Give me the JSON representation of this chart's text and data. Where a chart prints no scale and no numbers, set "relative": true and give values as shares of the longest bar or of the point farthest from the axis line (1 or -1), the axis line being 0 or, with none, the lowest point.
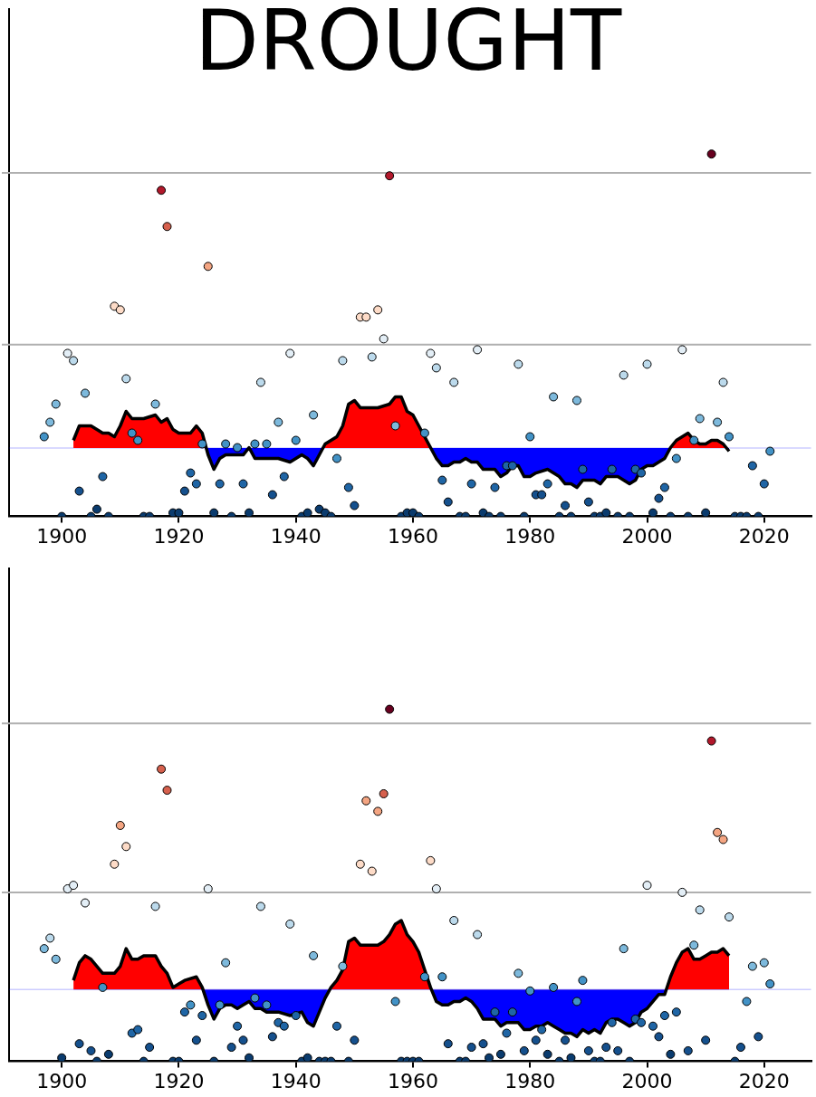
{
  "chart_data": [
    {
      "type": "scatter",
      "title": "DROUGHT",
      "relative": true,
      "tick_labels": "x",
      "legend": false,
      "grid": false,
      "xlim": [
        1891,
        2028
      ],
      "xticks": [
        1900,
        1920,
        1940,
        1960,
        1980,
        2000,
        2020
      ],
      "x": [
        1897,
        1898,
        1899,
        1900,
        1901,
        1902,
        1903,
        1904,
        1905,
        1906,
        1907,
        1908,
        1909,
        1910,
        1911,
        1912,
        1913,
        1914,
        1915,
        1916,
        1917,
        1918,
        1919,
        1920,
        1921,
        1922,
        1923,
        1924,
        1925,
        1926,
        1927,
        1928,
        1929,
        1930,
        1931,
        1932,
        1933,
        1934,
        1935,
        1936,
        1937,
        1938,
        1939,
        1940,
        1941,
        1942,
        1943,
        1944,
        1945,
        1946,
        1947,
        1948,
        1949,
        1950,
        1951,
        1952,
        1953,
        1954,
        1955,
        1956,
        1957,
        1958,
        1959,
        1960,
        1961,
        1962,
        1963,
        1964,
        1965,
        1966,
        1967,
        1968,
        1969,
        1970,
        1971,
        1972,
        1973,
        1974,
        1975,
        1976,
        1977,
        1978,
        1979,
        1980,
        1981,
        1982,
        1983,
        1984,
        1985,
        1986,
        1987,
        1988,
        1989,
        1990,
        1991,
        1992,
        1993,
        1994,
        1995,
        1996,
        1997,
        1998,
        1999,
        2000,
        2001,
        2002,
        2003,
        2004,
        2005,
        2006,
        2007,
        2008,
        2009,
        2010,
        2011,
        2012,
        2013,
        2014,
        2015,
        2016,
        2017,
        2018,
        2019,
        2020,
        2021
      ],
      "ref_lines": [
        {
          "axis": "y",
          "value": 0.189,
          "color": "#0000ff"
        },
        {
          "axis": "y",
          "value": 0.474,
          "color": "#b0b0b0"
        },
        {
          "axis": "y",
          "value": 0.948,
          "color": "#b0b0b0"
        }
      ],
      "series": [
        {
          "type": "area",
          "color": "#ff0000",
          "x": [
            1902,
            1903,
            1905,
            1906,
            1907,
            1908,
            1909,
            1910,
            1911,
            1912,
            1914,
            1916,
            1917,
            1918,
            1919,
            1920,
            1922,
            1923,
            1924,
            1925,
            1926,
            1927,
            1928,
            1929,
            1930,
            1931,
            1932,
            1933,
            1935,
            1937,
            1939,
            1941,
            1942,
            1943,
            1944,
            1945,
            1947,
            1948,
            1949,
            1950,
            1951,
            1954,
            1956,
            1957,
            1958,
            1959,
            1960,
            1961,
            1962,
            1963,
            1964,
            1965,
            1966,
            1967,
            1968,
            1969,
            1970,
            1971,
            1972,
            1973,
            1974,
            1975,
            1976,
            1977,
            1978,
            1979,
            1980,
            1981,
            1983,
            1984,
            1985,
            1986,
            1987,
            1988,
            1989,
            1991,
            1992,
            1993,
            1995,
            1996,
            1997,
            1998,
            1999,
            2000,
            2001,
            2002,
            2003,
            2004,
            2005,
            2006,
            2007,
            2008,
            2009,
            2010,
            2011,
            2012,
            2013,
            2014
          ],
          "values": [
            0.21,
            0.25,
            0.25,
            0.24,
            0.23,
            0.23,
            0.22,
            0.25,
            0.29,
            0.27,
            0.27,
            0.28,
            0.26,
            0.27,
            0.24,
            0.23,
            0.23,
            0.25,
            0.23,
            0.17,
            0.13,
            0.16,
            0.17,
            0.17,
            0.17,
            0.17,
            0.19,
            0.16,
            0.16,
            0.16,
            0.15,
            0.17,
            0.16,
            0.14,
            0.17,
            0.2,
            0.22,
            0.25,
            0.31,
            0.32,
            0.3,
            0.3,
            0.31,
            0.33,
            0.33,
            0.29,
            0.28,
            0.25,
            0.22,
            0.19,
            0.16,
            0.14,
            0.14,
            0.15,
            0.15,
            0.16,
            0.15,
            0.15,
            0.13,
            0.13,
            0.13,
            0.11,
            0.12,
            0.14,
            0.14,
            0.11,
            0.11,
            0.12,
            0.13,
            0.12,
            0.11,
            0.09,
            0.09,
            0.08,
            0.1,
            0.1,
            0.09,
            0.11,
            0.11,
            0.1,
            0.09,
            0.1,
            0.13,
            0.14,
            0.14,
            0.15,
            0.16,
            0.19,
            0.21,
            0.22,
            0.23,
            0.21,
            0.2,
            0.2,
            0.21,
            0.21,
            0.2,
            0.18
          ]
        },
        {
          "marker": "circle",
          "values": [
            0.22,
            0.26,
            0.31,
            0,
            0.45,
            0.43,
            0.07,
            0.34,
            0,
            0.02,
            0.11,
            0,
            0.58,
            0.57,
            0.38,
            0.23,
            0.21,
            0,
            0,
            0.31,
            0.9,
            0.8,
            0.01,
            0.01,
            0.07,
            0.12,
            0.09,
            0.2,
            0.69,
            0.01,
            0.09,
            0.2,
            0,
            0.19,
            0.09,
            0.01,
            0.2,
            0.37,
            0.2,
            0.06,
            0.26,
            0.11,
            0.45,
            0.21,
            0,
            0.01,
            0.28,
            0.02,
            0.01,
            0,
            0.16,
            0.43,
            0.08,
            0.03,
            0.55,
            0.55,
            0.44,
            0.57,
            0.49,
            0.94,
            0.25,
            0,
            0.01,
            0.01,
            0,
            0.23,
            0.45,
            0.41,
            0.1,
            0.04,
            0.37,
            0,
            0,
            0.09,
            0.46,
            0.01,
            0,
            0.08,
            0,
            0.14,
            0.14,
            0.42,
            0,
            0.22,
            0.06,
            0.06,
            0.09,
            0.33,
            0,
            0.03,
            0,
            0.32,
            0.13,
            0.04,
            0,
            0,
            0.01,
            0.13,
            0,
            0.39,
            0,
            0.13,
            0.12,
            0.42,
            0.01,
            0.05,
            0.08,
            0,
            0.16,
            0.46,
            0,
            0.21,
            0.27,
            0.01,
            1,
            0.26,
            0.37,
            0.22,
            0,
            0,
            0,
            0.14,
            0,
            0.09,
            0.18
          ],
          "colors": [
            "#4292c6",
            "#7db9dc",
            "#7db9dc",
            "#0a3b6e",
            "#e3eef6",
            "#bcdaec",
            "#15508d",
            "#7db9dc",
            "#0a3b6e",
            "#0a3b6e",
            "#1f65a5",
            "#0a3b6e",
            "#fddbc7",
            "#fddbc7",
            "#bcdaec",
            "#4292c6",
            "#4292c6",
            "#0a3b6e",
            "#0a3b6e",
            "#7db9dc",
            "#b2182b",
            "#d6604d",
            "#0a3b6e",
            "#0a3b6e",
            "#15508d",
            "#1f65a5",
            "#1f65a5",
            "#4292c6",
            "#f4a582",
            "#0a3b6e",
            "#1f65a5",
            "#4292c6",
            "#0a3b6e",
            "#4292c6",
            "#1f65a5",
            "#0a3b6e",
            "#4292c6",
            "#bcdaec",
            "#4292c6",
            "#15508d",
            "#7db9dc",
            "#1f65a5",
            "#e3eef6",
            "#4292c6",
            "#0a3b6e",
            "#0a3b6e",
            "#7db9dc",
            "#0a3b6e",
            "#0a3b6e",
            "#0a3b6e",
            "#4292c6",
            "#bcdaec",
            "#1f65a5",
            "#15508d",
            "#fddbc7",
            "#fddbc7",
            "#bcdaec",
            "#fddbc7",
            "#e3eef6",
            "#b2182b",
            "#7db9dc",
            "#0a3b6e",
            "#0a3b6e",
            "#0a3b6e",
            "#0a3b6e",
            "#4292c6",
            "#e3eef6",
            "#bcdaec",
            "#1f65a5",
            "#15508d",
            "#bcdaec",
            "#0a3b6e",
            "#0a3b6e",
            "#1f65a5",
            "#e3eef6",
            "#0a3b6e",
            "#0a3b6e",
            "#1f65a5",
            "#0a3b6e",
            "#1f65a5",
            "#1f65a5",
            "#bcdaec",
            "#0a3b6e",
            "#4292c6",
            "#15508d",
            "#15508d",
            "#1f65a5",
            "#7db9dc",
            "#0a3b6e",
            "#15508d",
            "#0a3b6e",
            "#7db9dc",
            "#1f65a5",
            "#15508d",
            "#0a3b6e",
            "#0a3b6e",
            "#0a3b6e",
            "#1f65a5",
            "#0a3b6e",
            "#bcdaec",
            "#0a3b6e",
            "#1f65a5",
            "#1f65a5",
            "#bcdaec",
            "#0a3b6e",
            "#15508d",
            "#1f65a5",
            "#0a3b6e",
            "#4292c6",
            "#e3eef6",
            "#0a3b6e",
            "#4292c6",
            "#7db9dc",
            "#0a3b6e",
            "#67001f",
            "#7db9dc",
            "#bcdaec",
            "#4292c6",
            "#0a3b6e",
            "#0a3b6e",
            "#0a3b6e",
            "#1f65a5",
            "#0a3b6e",
            "#1f65a5",
            "#4292c6"
          ]
        }
      ]
    },
    {
      "type": "scatter",
      "relative": true,
      "tick_labels": "x",
      "legend": false,
      "grid": false,
      "xlim": [
        1891,
        2028
      ],
      "xticks": [
        1900,
        1920,
        1940,
        1960,
        1980,
        2000,
        2020
      ],
      "x": [
        1897,
        1898,
        1899,
        1900,
        1901,
        1902,
        1903,
        1904,
        1905,
        1906,
        1907,
        1908,
        1909,
        1910,
        1911,
        1912,
        1913,
        1914,
        1915,
        1916,
        1917,
        1918,
        1919,
        1920,
        1921,
        1922,
        1923,
        1924,
        1925,
        1926,
        1927,
        1928,
        1929,
        1930,
        1931,
        1932,
        1933,
        1934,
        1935,
        1936,
        1937,
        1938,
        1939,
        1940,
        1941,
        1942,
        1943,
        1944,
        1945,
        1946,
        1947,
        1948,
        1949,
        1950,
        1951,
        1952,
        1953,
        1954,
        1955,
        1956,
        1957,
        1958,
        1959,
        1960,
        1961,
        1962,
        1963,
        1964,
        1965,
        1966,
        1967,
        1968,
        1969,
        1970,
        1971,
        1972,
        1973,
        1974,
        1975,
        1976,
        1977,
        1978,
        1979,
        1980,
        1981,
        1982,
        1983,
        1984,
        1985,
        1986,
        1987,
        1988,
        1989,
        1990,
        1991,
        1992,
        1993,
        1994,
        1995,
        1996,
        1997,
        1998,
        1999,
        2000,
        2001,
        2002,
        2003,
        2004,
        2005,
        2006,
        2007,
        2008,
        2009,
        2010,
        2011,
        2012,
        2013,
        2014,
        2015,
        2016,
        2017,
        2018,
        2019,
        2020,
        2021
      ],
      "ref_lines": [
        {
          "axis": "y",
          "value": 0.204,
          "color": "#0000ff"
        },
        {
          "axis": "y",
          "value": 0.48,
          "color": "#b0b0b0"
        },
        {
          "axis": "y",
          "value": 0.96,
          "color": "#b0b0b0"
        }
      ],
      "series": [
        {
          "type": "area",
          "color": "#ff0000",
          "x": [
            1902,
            1903,
            1904,
            1905,
            1906,
            1907,
            1909,
            1910,
            1911,
            1912,
            1913,
            1914,
            1916,
            1917,
            1918,
            1919,
            1920,
            1921,
            1923,
            1924,
            1925,
            1926,
            1927,
            1928,
            1929,
            1930,
            1931,
            1932,
            1933,
            1934,
            1935,
            1937,
            1939,
            1941,
            1942,
            1943,
            1944,
            1945,
            1946,
            1947,
            1948,
            1949,
            1950,
            1951,
            1954,
            1955,
            1956,
            1957,
            1958,
            1959,
            1960,
            1961,
            1962,
            1963,
            1964,
            1965,
            1966,
            1967,
            1968,
            1969,
            1970,
            1971,
            1972,
            1974,
            1975,
            1976,
            1977,
            1978,
            1979,
            1980,
            1981,
            1982,
            1983,
            1984,
            1985,
            1986,
            1987,
            1988,
            1989,
            1990,
            1991,
            1992,
            1993,
            1994,
            1995,
            1996,
            1997,
            1998,
            1999,
            2000,
            2001,
            2002,
            2003,
            2004,
            2005,
            2006,
            2007,
            2008,
            2009,
            2010,
            2011,
            2012,
            2013,
            2014
          ],
          "values": [
            0.23,
            0.28,
            0.3,
            0.29,
            0.27,
            0.25,
            0.25,
            0.27,
            0.32,
            0.29,
            0.29,
            0.3,
            0.3,
            0.27,
            0.25,
            0.21,
            0.22,
            0.23,
            0.24,
            0.21,
            0.16,
            0.12,
            0.15,
            0.16,
            0.16,
            0.15,
            0.16,
            0.17,
            0.15,
            0.15,
            0.14,
            0.14,
            0.13,
            0.14,
            0.11,
            0.1,
            0.14,
            0.18,
            0.21,
            0.23,
            0.26,
            0.34,
            0.35,
            0.33,
            0.33,
            0.34,
            0.36,
            0.39,
            0.4,
            0.36,
            0.34,
            0.31,
            0.26,
            0.21,
            0.17,
            0.16,
            0.16,
            0.17,
            0.17,
            0.18,
            0.17,
            0.15,
            0.12,
            0.12,
            0.1,
            0.11,
            0.11,
            0.11,
            0.09,
            0.09,
            0.1,
            0.1,
            0.11,
            0.1,
            0.09,
            0.08,
            0.08,
            0.07,
            0.09,
            0.08,
            0.09,
            0.08,
            0.11,
            0.12,
            0.12,
            0.11,
            0.1,
            0.11,
            0.14,
            0.15,
            0.17,
            0.19,
            0.19,
            0.24,
            0.28,
            0.31,
            0.32,
            0.29,
            0.29,
            0.3,
            0.31,
            0.31,
            0.32,
            0.3
          ]
        },
        {
          "marker": "circle",
          "values": [
            0.32,
            0.35,
            0.29,
            0.01,
            0.49,
            0.5,
            0.05,
            0.45,
            0.03,
            0,
            0.21,
            0.02,
            0.56,
            0.67,
            0.61,
            0.08,
            0.09,
            0,
            0.04,
            0.44,
            0.83,
            0.77,
            0,
            0,
            0.14,
            0.16,
            0.06,
            0.13,
            0.49,
            0,
            0.16,
            0.28,
            0.04,
            0.1,
            0.06,
            0.01,
            0.18,
            0.44,
            0.16,
            0.07,
            0.11,
            0.1,
            0.39,
            0.13,
            0,
            0.01,
            0.3,
            0,
            0,
            0,
            0.1,
            0.27,
            0,
            0.06,
            0.56,
            0.74,
            0.54,
            0.71,
            0.76,
            1,
            0.17,
            0,
            0,
            0,
            0,
            0.24,
            0.57,
            0.49,
            0.24,
            0.05,
            0.4,
            0,
            0,
            0.04,
            0.36,
            0.05,
            0.01,
            0.14,
            0.02,
            0.08,
            0.14,
            0.25,
            0.03,
            0.2,
            0.06,
            0.09,
            0.02,
            0.21,
            0,
            0.06,
            0.01,
            0.17,
            0.23,
            0.03,
            0,
            0,
            0.04,
            0.11,
            0.03,
            0.32,
            0,
            0.12,
            0.11,
            0.5,
            0.1,
            0.07,
            0.13,
            0.02,
            0.14,
            0.48,
            0.03,
            0.33,
            0.43,
            0.06,
            0.91,
            0.65,
            0.63,
            0.41,
            0,
            0.04,
            0.17,
            0.27,
            0.07,
            0.28,
            0.22
          ],
          "colors": [
            "#7db9dc",
            "#bcdaec",
            "#7db9dc",
            "#0a3b6e",
            "#e3eef6",
            "#e3eef6",
            "#15508d",
            "#e3eef6",
            "#15508d",
            "#0a3b6e",
            "#4292c6",
            "#0a3b6e",
            "#fddbc7",
            "#f4a582",
            "#fddbc7",
            "#1f65a5",
            "#1f65a5",
            "#0a3b6e",
            "#15508d",
            "#bcdaec",
            "#d6604d",
            "#d6604d",
            "#0a3b6e",
            "#0a3b6e",
            "#1f65a5",
            "#4292c6",
            "#15508d",
            "#1f65a5",
            "#e3eef6",
            "#0a3b6e",
            "#4292c6",
            "#7db9dc",
            "#15508d",
            "#1f65a5",
            "#15508d",
            "#0a3b6e",
            "#4292c6",
            "#bcdaec",
            "#4292c6",
            "#15508d",
            "#1f65a5",
            "#1f65a5",
            "#bcdaec",
            "#1f65a5",
            "#0a3b6e",
            "#0a3b6e",
            "#7db9dc",
            "#0a3b6e",
            "#0a3b6e",
            "#0a3b6e",
            "#1f65a5",
            "#7db9dc",
            "#0a3b6e",
            "#15508d",
            "#fddbc7",
            "#f4a582",
            "#fddbc7",
            "#f4a582",
            "#d6604d",
            "#67001f",
            "#4292c6",
            "#0a3b6e",
            "#0a3b6e",
            "#0a3b6e",
            "#0a3b6e",
            "#4292c6",
            "#fddbc7",
            "#e3eef6",
            "#4292c6",
            "#15508d",
            "#bcdaec",
            "#0a3b6e",
            "#0a3b6e",
            "#15508d",
            "#bcdaec",
            "#15508d",
            "#0a3b6e",
            "#1f65a5",
            "#0a3b6e",
            "#1f65a5",
            "#1f65a5",
            "#7db9dc",
            "#15508d",
            "#4292c6",
            "#15508d",
            "#1f65a5",
            "#0a3b6e",
            "#4292c6",
            "#0a3b6e",
            "#15508d",
            "#0a3b6e",
            "#4292c6",
            "#4292c6",
            "#15508d",
            "#0a3b6e",
            "#0a3b6e",
            "#15508d",
            "#1f65a5",
            "#15508d",
            "#7db9dc",
            "#0a3b6e",
            "#1f65a5",
            "#1f65a5",
            "#e3eef6",
            "#1f65a5",
            "#15508d",
            "#1f65a5",
            "#0a3b6e",
            "#1f65a5",
            "#e3eef6",
            "#15508d",
            "#7db9dc",
            "#bcdaec",
            "#15508d",
            "#b2182b",
            "#f4a582",
            "#f4a582",
            "#bcdaec",
            "#0a3b6e",
            "#15508d",
            "#4292c6",
            "#7db9dc",
            "#15508d",
            "#7db9dc",
            "#4292c6"
          ]
        }
      ]
    }
  ]
}
